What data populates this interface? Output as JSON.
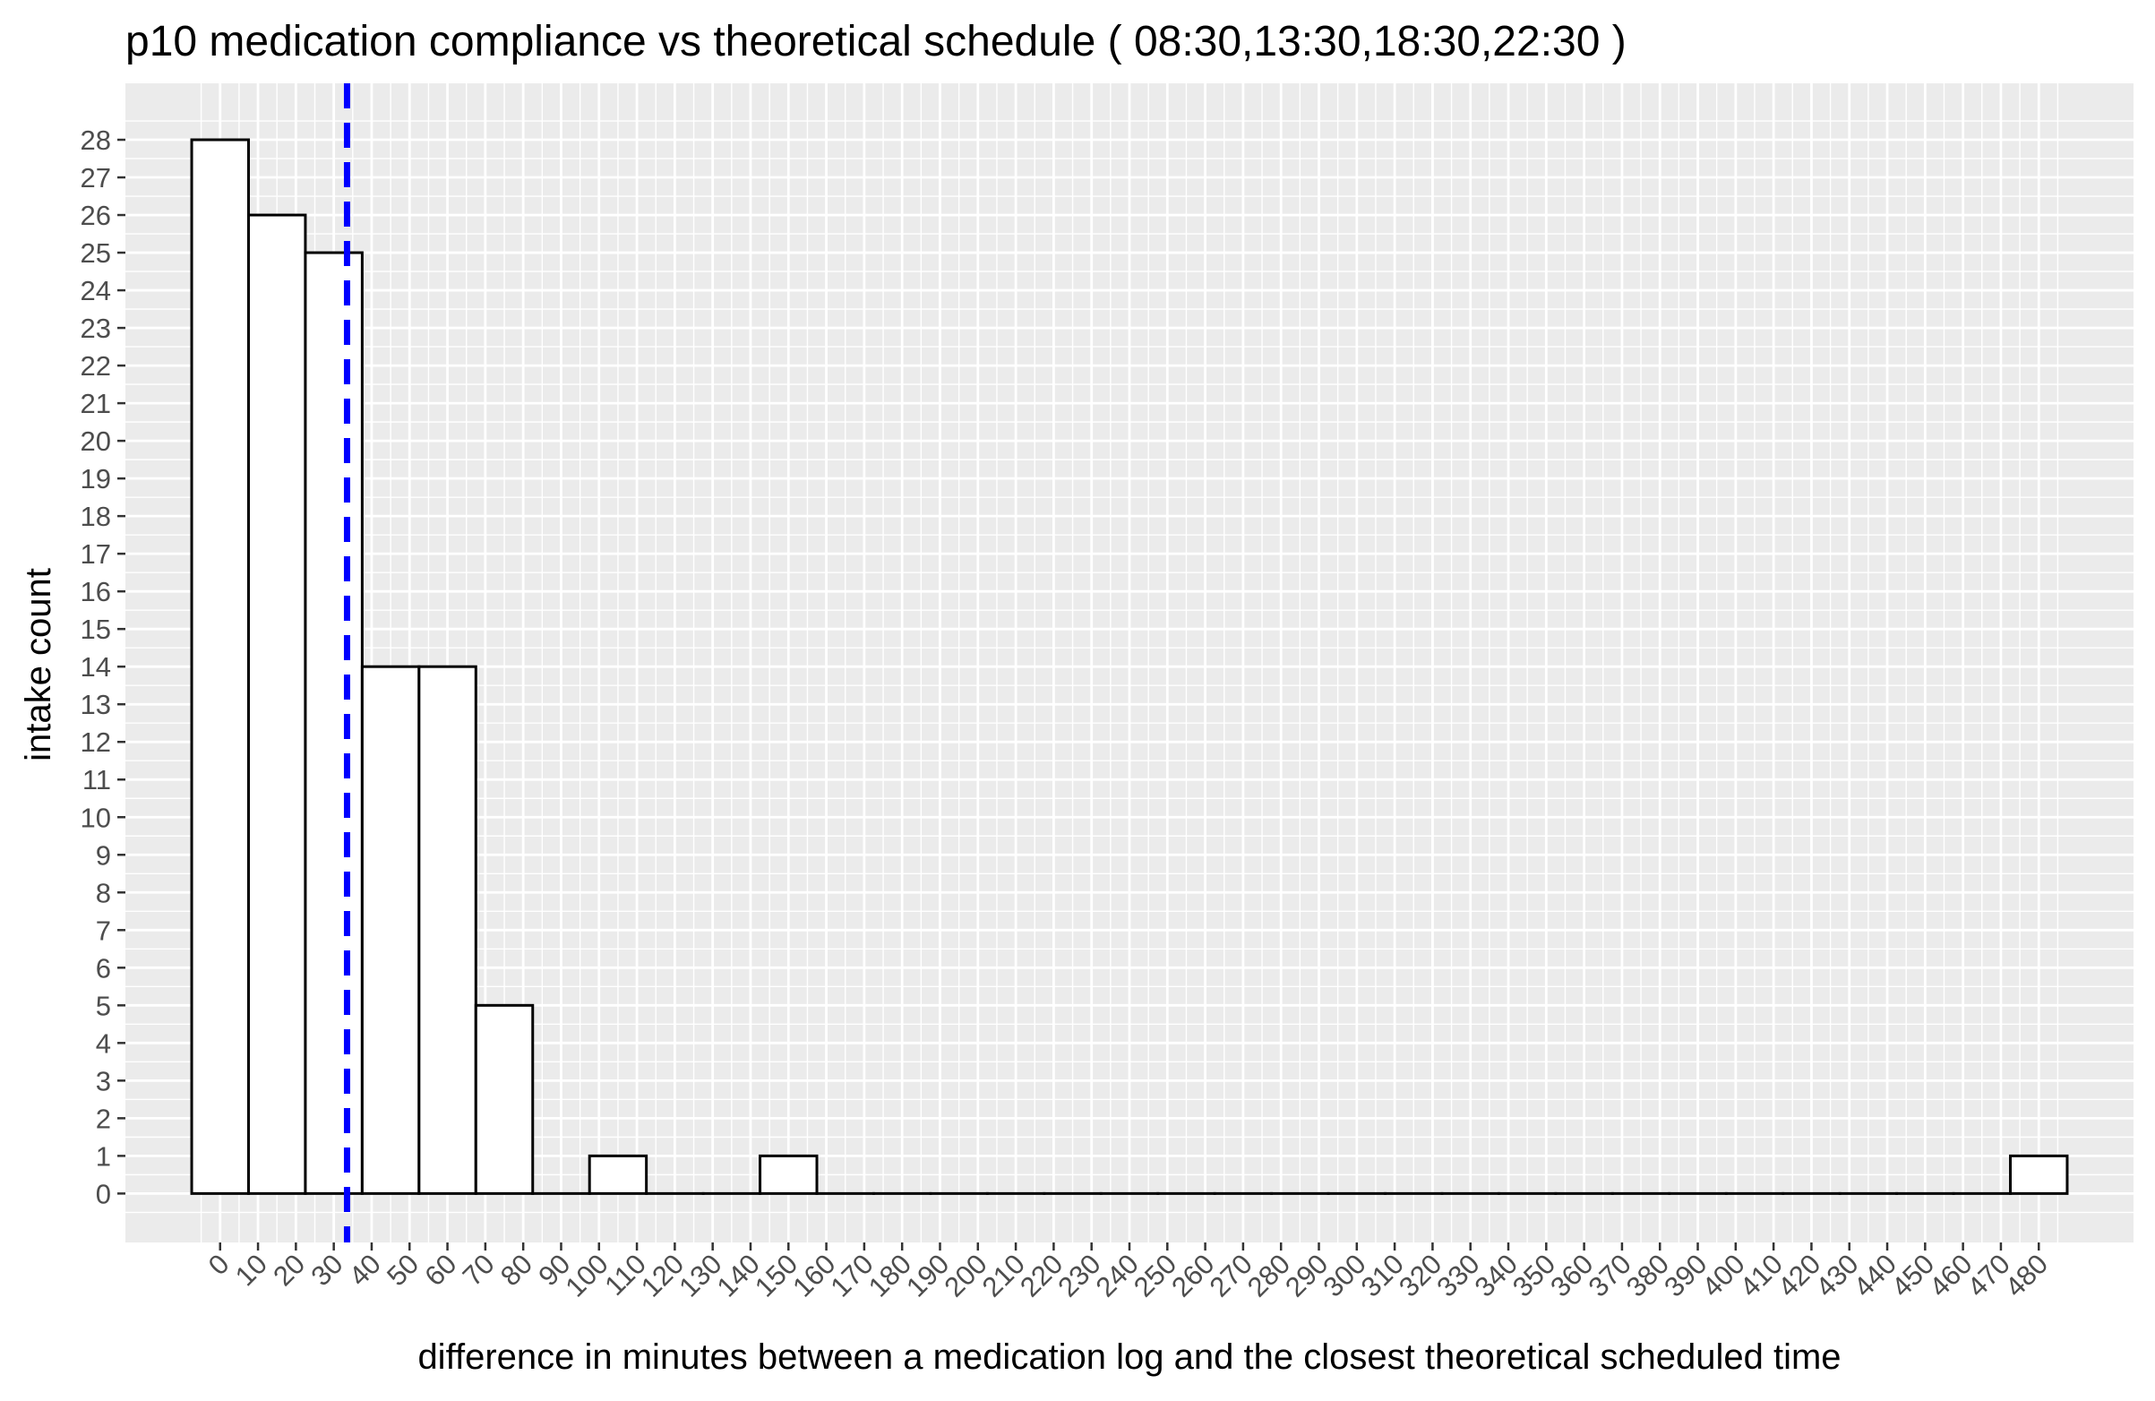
{
  "chart_data": {
    "type": "bar",
    "title": "p10  medication compliance vs theoretical schedule ( 08:30,13:30,18:30,22:30 )",
    "xlabel": "difference in minutes between a medication log and the closest theoretical scheduled time",
    "ylabel": "intake count",
    "x_ticks": [
      0,
      10,
      20,
      30,
      40,
      50,
      60,
      70,
      80,
      90,
      100,
      110,
      120,
      130,
      140,
      150,
      160,
      170,
      180,
      190,
      200,
      210,
      220,
      230,
      240,
      250,
      260,
      270,
      280,
      290,
      300,
      310,
      320,
      330,
      340,
      350,
      360,
      370,
      380,
      390,
      400,
      410,
      420,
      430,
      440,
      450,
      460,
      470,
      480
    ],
    "y_ticks": [
      0,
      1,
      2,
      3,
      4,
      5,
      6,
      7,
      8,
      9,
      10,
      11,
      12,
      13,
      14,
      15,
      16,
      17,
      18,
      19,
      20,
      21,
      22,
      23,
      24,
      25,
      26,
      27,
      28
    ],
    "bin_width": 15,
    "bins": [
      {
        "x_start": -7.5,
        "x_end": 7.5,
        "count": 28
      },
      {
        "x_start": 7.5,
        "x_end": 22.5,
        "count": 26
      },
      {
        "x_start": 22.5,
        "x_end": 37.5,
        "count": 25
      },
      {
        "x_start": 37.5,
        "x_end": 52.5,
        "count": 14
      },
      {
        "x_start": 52.5,
        "x_end": 67.5,
        "count": 14
      },
      {
        "x_start": 67.5,
        "x_end": 82.5,
        "count": 5
      },
      {
        "x_start": 82.5,
        "x_end": 97.5,
        "count": 0
      },
      {
        "x_start": 97.5,
        "x_end": 112.5,
        "count": 1
      },
      {
        "x_start": 112.5,
        "x_end": 127.5,
        "count": 0
      },
      {
        "x_start": 127.5,
        "x_end": 142.5,
        "count": 0
      },
      {
        "x_start": 142.5,
        "x_end": 157.5,
        "count": 1
      },
      {
        "x_start": 157.5,
        "x_end": 172.5,
        "count": 0
      },
      {
        "x_start": 172.5,
        "x_end": 187.5,
        "count": 0
      },
      {
        "x_start": 187.5,
        "x_end": 202.5,
        "count": 0
      },
      {
        "x_start": 202.5,
        "x_end": 217.5,
        "count": 0
      },
      {
        "x_start": 217.5,
        "x_end": 232.5,
        "count": 0
      },
      {
        "x_start": 232.5,
        "x_end": 247.5,
        "count": 0
      },
      {
        "x_start": 247.5,
        "x_end": 262.5,
        "count": 0
      },
      {
        "x_start": 262.5,
        "x_end": 277.5,
        "count": 0
      },
      {
        "x_start": 277.5,
        "x_end": 292.5,
        "count": 0
      },
      {
        "x_start": 292.5,
        "x_end": 307.5,
        "count": 0
      },
      {
        "x_start": 307.5,
        "x_end": 322.5,
        "count": 0
      },
      {
        "x_start": 322.5,
        "x_end": 337.5,
        "count": 0
      },
      {
        "x_start": 337.5,
        "x_end": 352.5,
        "count": 0
      },
      {
        "x_start": 352.5,
        "x_end": 367.5,
        "count": 0
      },
      {
        "x_start": 367.5,
        "x_end": 382.5,
        "count": 0
      },
      {
        "x_start": 382.5,
        "x_end": 397.5,
        "count": 0
      },
      {
        "x_start": 397.5,
        "x_end": 412.5,
        "count": 0
      },
      {
        "x_start": 412.5,
        "x_end": 427.5,
        "count": 0
      },
      {
        "x_start": 427.5,
        "x_end": 442.5,
        "count": 0
      },
      {
        "x_start": 442.5,
        "x_end": 457.5,
        "count": 0
      },
      {
        "x_start": 457.5,
        "x_end": 472.5,
        "count": 0
      },
      {
        "x_start": 472.5,
        "x_end": 487.5,
        "count": 1
      }
    ],
    "reference_line": {
      "x": 33.5,
      "style": "dashed",
      "color": "#0000ff"
    },
    "xlim": [
      -25,
      505
    ],
    "ylim": [
      -1.3,
      29.5
    ],
    "grid": true,
    "panel_background": "#ebebeb",
    "bar_fill": "#ffffff",
    "bar_outline": "#000000",
    "legend": "none"
  }
}
